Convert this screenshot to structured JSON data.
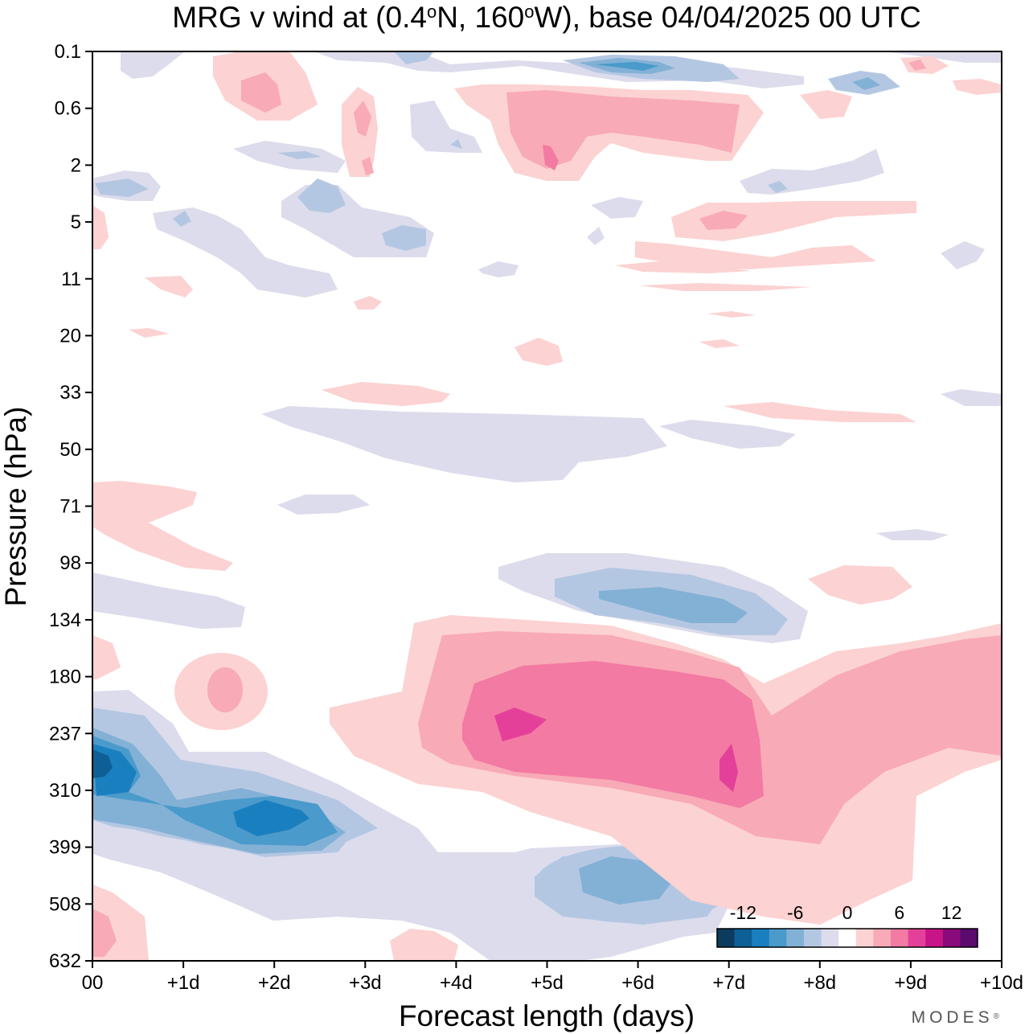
{
  "chart_data": {
    "type": "contour",
    "title_parts": [
      "MRG v wind at (0.4",
      "o",
      "N, 160",
      "o",
      "W),  base 04/04/2025  00 UTC"
    ],
    "xlabel": "Forecast length (days)",
    "ylabel": "Pressure (hPa)",
    "x_ticks": [
      "00",
      "+1d",
      "+2d",
      "+3d",
      "+4d",
      "+5d",
      "+6d",
      "+7d",
      "+8d",
      "+9d",
      "+10d"
    ],
    "y_ticks": [
      "0.1",
      "0.6",
      "2",
      "5",
      "11",
      "20",
      "33",
      "50",
      "71",
      "98",
      "134",
      "180",
      "237",
      "310",
      "399",
      "508",
      "632"
    ],
    "xlim_days": [
      0,
      10
    ],
    "colorbar": {
      "labels": [
        "-12",
        "-6",
        "0",
        "6",
        "12"
      ],
      "colors": [
        "#0b3c5d",
        "#0e5f95",
        "#1a7fbf",
        "#4a9acb",
        "#83b1d6",
        "#b4c7e2",
        "#dcdcec",
        "#ffffff",
        "#fcd2d2",
        "#f8aab6",
        "#f27aa3",
        "#e4409a",
        "#c81488",
        "#8a0a7c",
        "#5b0a6e"
      ]
    },
    "features": [
      {
        "sign": "negative",
        "peak_level": -12,
        "x_days": [
          0.0,
          4.0
        ],
        "y_hPa": [
          134,
          508
        ],
        "note": "lower-troposphere easterly-side v core near 00 at ~270 hPa"
      },
      {
        "sign": "negative",
        "peak_level": -10,
        "x_days": [
          1.2,
          2.6
        ],
        "y_hPa": [
          290,
          420
        ],
        "note": "secondary core near +2d at ~350 hPa"
      },
      {
        "sign": "negative",
        "peak_level": -8,
        "x_days": [
          5.2,
          7.3
        ],
        "y_hPa": [
          400,
          540
        ],
        "note": "core near +6d at ~460 hPa"
      },
      {
        "sign": "negative",
        "peak_level": -8,
        "x_days": [
          4.5,
          8.0
        ],
        "y_hPa": [
          90,
          160
        ],
        "note": "band near +5.5d to +7d at ~120 hPa"
      },
      {
        "sign": "positive",
        "peak_level": 10,
        "x_days": [
          3.5,
          10.0
        ],
        "y_hPa": [
          134,
          450
        ],
        "note": "large positive region, peak near +4.5d and +7d at ~220-280 hPa"
      },
      {
        "sign": "positive",
        "peak_level": 8,
        "x_days": [
          4.5,
          7.5
        ],
        "y_hPa": [
          0.4,
          3
        ],
        "note": "upper-level positive band"
      },
      {
        "sign": "negative",
        "peak_level": -8,
        "x_days": [
          5.0,
          8.5
        ],
        "y_hPa": [
          0.1,
          0.6
        ],
        "note": "upper-level negative band near 0.3 hPa"
      },
      {
        "sign": "positive",
        "peak_level": 4,
        "x_days": [
          0.0,
          1.5
        ],
        "y_hPa": [
          60,
          100
        ],
        "note": "weak positive near 71-98 hPa"
      },
      {
        "sign": "negative",
        "peak_level": -3,
        "x_days": [
          1.8,
          5.0
        ],
        "y_hPa": [
          33,
          60
        ],
        "note": "weak negative band near 33-50 hPa"
      }
    ]
  },
  "brand": "MODES",
  "brand_mark": "®"
}
